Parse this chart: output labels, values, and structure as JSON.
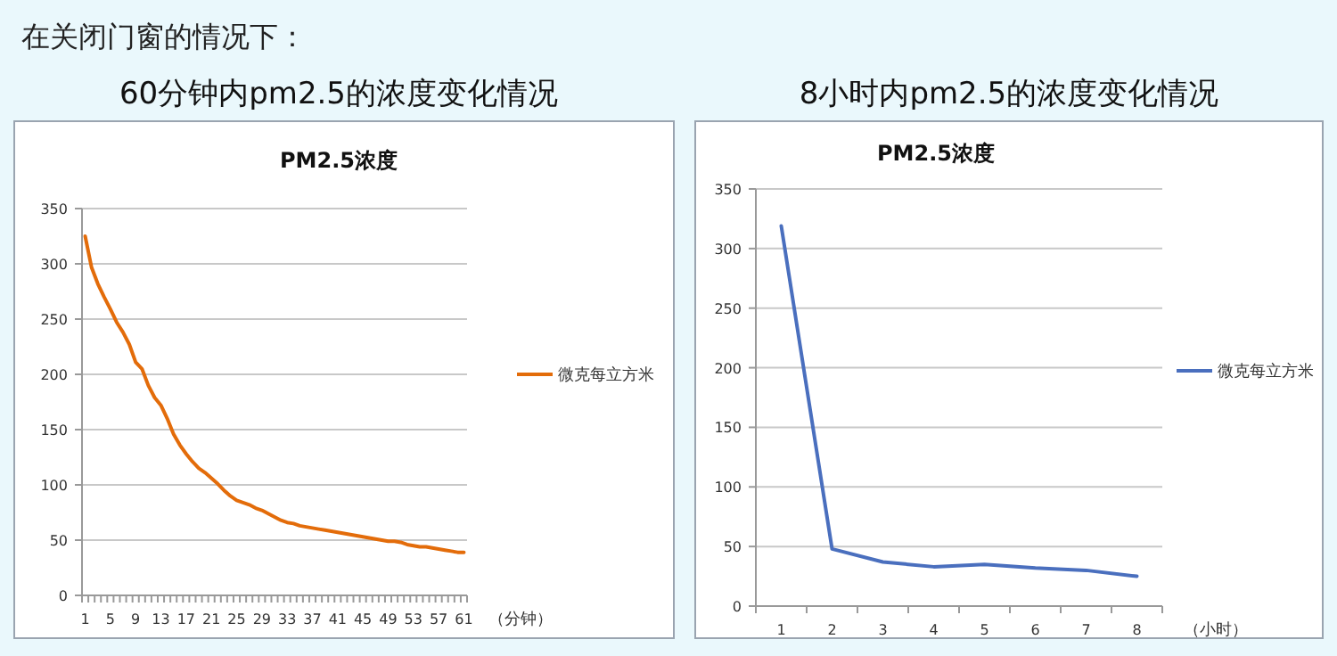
{
  "chart_data": [
    {
      "type": "line",
      "title": "60分钟内pm2.5的浓度变化情况",
      "subtitle": "PM2.5浓度",
      "xlabel": "（分钟）",
      "annotations": [
        "在关闭门窗的情况下："
      ],
      "categories": [
        "1",
        null,
        null,
        null,
        "5",
        null,
        null,
        null,
        "9",
        null,
        null,
        null,
        "13",
        null,
        null,
        null,
        "17",
        null,
        null,
        null,
        "21",
        null,
        null,
        null,
        "25",
        null,
        null,
        null,
        "29",
        null,
        null,
        null,
        "33",
        null,
        null,
        null,
        "37",
        null,
        null,
        null,
        "41",
        null,
        null,
        null,
        "45",
        null,
        null,
        null,
        "49",
        null,
        null,
        null,
        "53",
        null,
        null,
        null,
        "57",
        null,
        null,
        null,
        "61"
      ],
      "series": [
        {
          "name": "微克每立方米",
          "color": "#e36c0a",
          "values": [
            325,
            297,
            282,
            270,
            259,
            247,
            238,
            227,
            211,
            205,
            190,
            179,
            172,
            160,
            146,
            136,
            128,
            121,
            115,
            111,
            106,
            101,
            95,
            90,
            86,
            84,
            82,
            79,
            77,
            74,
            71,
            68,
            66,
            65,
            63,
            62,
            61,
            60,
            59,
            58,
            57,
            56,
            55,
            54,
            53,
            52,
            51,
            50,
            49,
            49,
            48,
            46,
            45,
            44,
            44,
            43,
            42,
            41,
            40,
            39,
            39
          ]
        }
      ],
      "ylim": [
        0,
        350
      ],
      "yticks": [
        0,
        50,
        100,
        150,
        200,
        250,
        300,
        350
      ],
      "grid": "y",
      "legend": "right",
      "marker": "none"
    },
    {
      "type": "line",
      "title": "8小时内pm2.5的浓度变化情况",
      "subtitle": "PM2.5浓度",
      "xlabel": "（小时）",
      "categories": [
        "1",
        "2",
        "3",
        "4",
        "5",
        "6",
        "7",
        "8"
      ],
      "series": [
        {
          "name": "微克每立方米",
          "color": "#4a6fbe",
          "values": [
            319,
            48,
            37,
            33,
            35,
            32,
            30,
            25
          ]
        }
      ],
      "ylim": [
        0,
        350
      ],
      "yticks": [
        0,
        50,
        100,
        150,
        200,
        250,
        300,
        350
      ],
      "grid": "y",
      "legend": "right",
      "marker": "none"
    }
  ]
}
